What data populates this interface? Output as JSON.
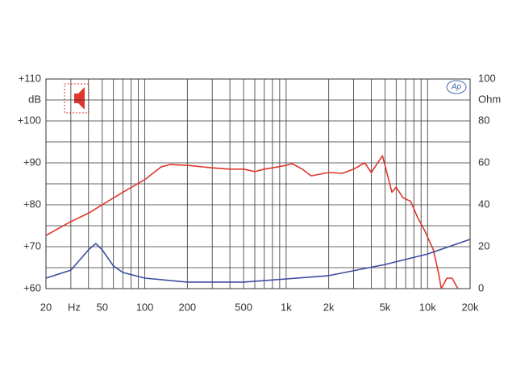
{
  "chart_data": {
    "type": "line",
    "log_x": true,
    "x_label": "Hz",
    "y_label": "dB",
    "y2_label": "Ohm",
    "xlim": [
      20,
      20000
    ],
    "ylim": [
      60,
      110
    ],
    "y2lim": [
      0,
      100
    ],
    "xticks": [
      20,
      50,
      100,
      200,
      500,
      {
        "value": 1000,
        "label": "1k"
      },
      {
        "value": 2000,
        "label": "2k"
      },
      {
        "value": 5000,
        "label": "5k"
      },
      {
        "value": 10000,
        "label": "10k"
      },
      {
        "value": 20000,
        "label": "20k"
      }
    ],
    "yticks": [
      {
        "value": 110,
        "label": "+110"
      },
      {
        "value": 100,
        "label": "+100"
      },
      {
        "value": 90,
        "label": "+90"
      },
      {
        "value": 80,
        "label": "+80"
      },
      {
        "value": 70,
        "label": "+70"
      },
      {
        "value": 60,
        "label": "+60"
      }
    ],
    "y2ticks": [
      100,
      80,
      60,
      40,
      20,
      0
    ],
    "xgrid": [
      20,
      30,
      40,
      50,
      60,
      70,
      80,
      90,
      100,
      200,
      300,
      400,
      500,
      600,
      700,
      800,
      900,
      1000,
      2000,
      3000,
      4000,
      5000,
      6000,
      7000,
      8000,
      9000,
      10000,
      20000
    ],
    "ygrid": [
      60,
      65,
      70,
      75,
      80,
      85,
      90,
      95,
      100,
      105,
      110
    ],
    "series": [
      {
        "color": "#e0362b",
        "axis": "y",
        "x": [
          20,
          30,
          40,
          50,
          70,
          100,
          130,
          150,
          200,
          300,
          400,
          500,
          600,
          700,
          800,
          1000,
          1100,
          1300,
          1500,
          2000,
          2500,
          3000,
          3600,
          4000,
          4800,
          5600,
          6000,
          6700,
          7600,
          8500,
          9500,
          11000,
          12000,
          12500,
          13700,
          14900,
          16400
        ],
        "values": [
          72.7,
          76,
          78,
          80,
          83,
          86,
          89,
          89.6,
          89.4,
          88.8,
          88.5,
          88.5,
          87.9,
          88.5,
          88.8,
          89.4,
          89.8,
          88.5,
          86.9,
          87.7,
          87.5,
          88.5,
          90,
          87.7,
          91.7,
          83,
          84.2,
          81.7,
          80.8,
          77,
          74,
          69.2,
          63.5,
          60,
          62.5,
          62.5,
          60
        ]
      },
      {
        "color": "#3a4d9e",
        "axis": "y2",
        "x": [
          20,
          30,
          40,
          45,
          50,
          60,
          70,
          100,
          200,
          500,
          1000,
          2000,
          5000,
          10000,
          20000
        ],
        "values": [
          5,
          8.8,
          18.5,
          21.5,
          18.5,
          10.8,
          7.7,
          5,
          3.1,
          3.1,
          4.6,
          6.2,
          11.5,
          16.5,
          23.5
        ]
      }
    ]
  }
}
